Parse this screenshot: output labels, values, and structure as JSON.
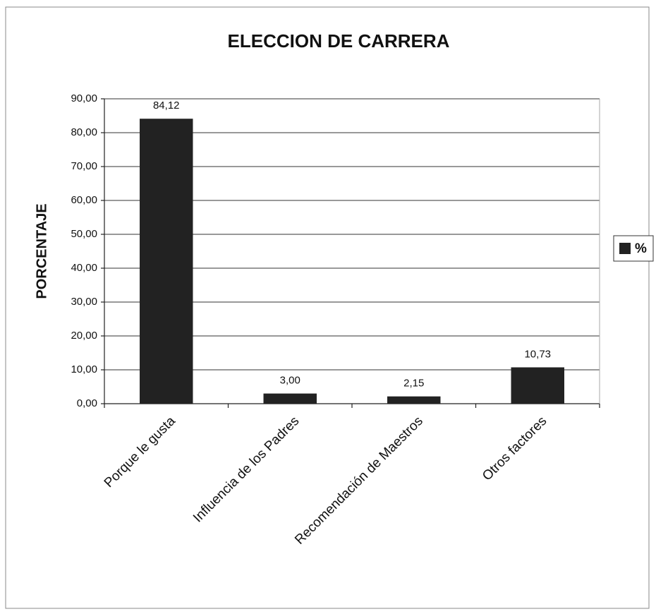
{
  "chart_data": {
    "type": "bar",
    "title": "ELECCION DE CARRERA",
    "y_label": "PORCENTAJE",
    "categories": [
      "Porque le gusta",
      "Influencia de los Padres",
      "Recomendación de Maestros",
      "Otros factores"
    ],
    "series": [
      {
        "name": "%",
        "color": "#222222",
        "values": [
          84.12,
          3.0,
          2.15,
          10.73
        ],
        "value_labels": [
          "84,12",
          "3,00",
          "2,15",
          "10,73"
        ]
      }
    ],
    "ylim": [
      0,
      90
    ],
    "yticks": [
      {
        "value": 0,
        "label": "0,00"
      },
      {
        "value": 10,
        "label": "10,00"
      },
      {
        "value": 20,
        "label": "20,00"
      },
      {
        "value": 30,
        "label": "30,00"
      },
      {
        "value": 40,
        "label": "40,00"
      },
      {
        "value": 50,
        "label": "50,00"
      },
      {
        "value": 60,
        "label": "60,00"
      },
      {
        "value": 70,
        "label": "70,00"
      },
      {
        "value": 80,
        "label": "80,00"
      },
      {
        "value": 90,
        "label": "90,00"
      }
    ],
    "grid": true,
    "legend": "right"
  }
}
